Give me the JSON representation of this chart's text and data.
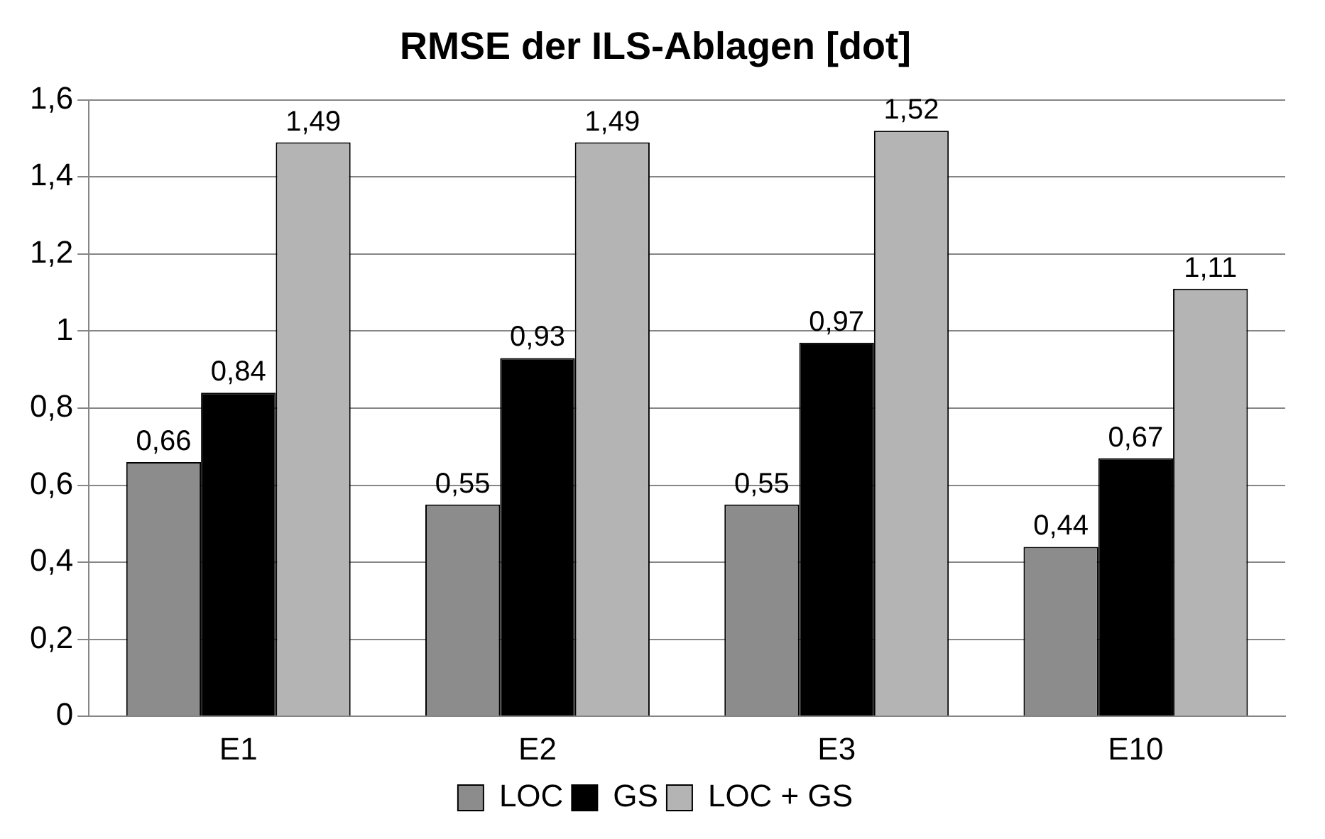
{
  "chart_data": {
    "type": "bar",
    "title": "RMSE der ILS-Ablagen [dot]",
    "categories": [
      "E1",
      "E2",
      "E3",
      "E10"
    ],
    "series": [
      {
        "name": "LOC",
        "color": "#8c8c8c",
        "values": [
          0.66,
          0.55,
          0.55,
          0.44
        ],
        "value_labels": [
          "0,66",
          "0,55",
          "0,55",
          "0,44"
        ]
      },
      {
        "name": "GS",
        "color": "#000000",
        "values": [
          0.84,
          0.93,
          0.97,
          0.67
        ],
        "value_labels": [
          "0,84",
          "0,93",
          "0,97",
          "0,67"
        ]
      },
      {
        "name": "LOC + GS",
        "color": "#b4b4b4",
        "values": [
          1.49,
          1.49,
          1.52,
          1.11
        ],
        "value_labels": [
          "1,49",
          "1,49",
          "1,52",
          "1,11"
        ]
      }
    ],
    "ylim": [
      0,
      1.6
    ],
    "yticks": [
      0,
      {
        "value": 0.2,
        "label": "0,2"
      },
      {
        "value": 0.4,
        "label": "0,4"
      },
      {
        "value": 0.6,
        "label": "0,6"
      },
      {
        "value": 0.8,
        "label": "0,8"
      },
      1,
      {
        "value": 1.2,
        "label": "1,2"
      },
      {
        "value": 1.4,
        "label": "1,4"
      },
      {
        "value": 1.6,
        "label": "1,6"
      }
    ],
    "grid": "y",
    "legend": "bottom"
  }
}
